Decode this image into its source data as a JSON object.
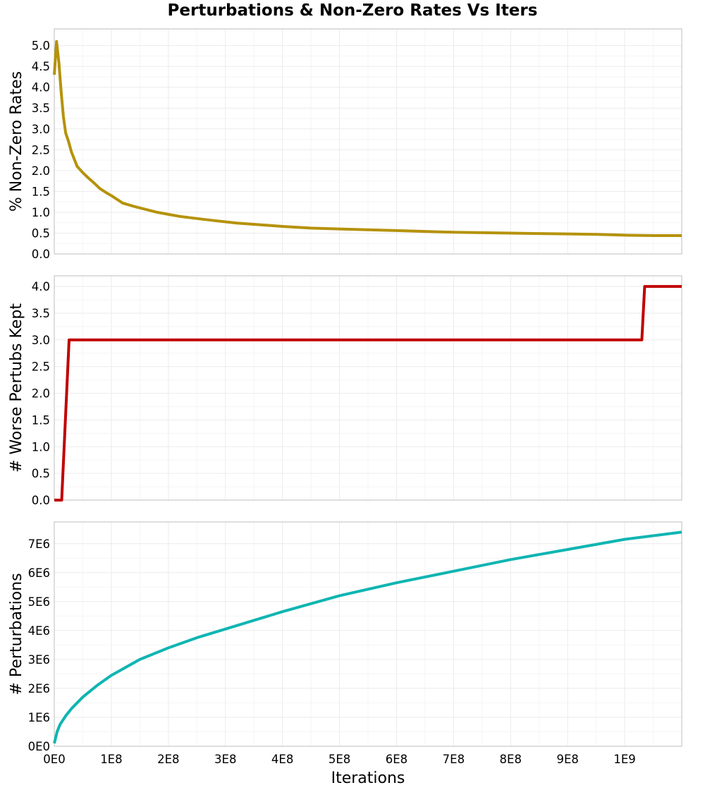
{
  "title": "Perturbations & Non-Zero Rates Vs Iters",
  "xlabel": "Iterations",
  "chart_data": [
    {
      "type": "line",
      "ylabel": "% Non-Zero Rates",
      "xlim": [
        0,
        1100000000
      ],
      "ylim": [
        0,
        5.4
      ],
      "yticks": [
        0,
        0.5,
        1.0,
        1.5,
        2.0,
        2.5,
        3.0,
        3.5,
        4.0,
        4.5,
        5.0
      ],
      "ytick_labels": [
        "0.0",
        "0.5",
        "1.0",
        "1.5",
        "2.0",
        "2.5",
        "3.0",
        "3.5",
        "4.0",
        "4.5",
        "5.0"
      ],
      "grid": true,
      "series": [
        {
          "color": "#b5920b",
          "x": [
            0,
            4000000,
            8000000,
            12000000,
            16000000,
            20000000,
            25000000,
            30000000,
            40000000,
            50000000,
            60000000,
            70000000,
            80000000,
            90000000,
            100000000,
            120000000,
            140000000,
            160000000,
            180000000,
            200000000,
            220000000,
            250000000,
            280000000,
            320000000,
            360000000,
            400000000,
            450000000,
            500000000,
            550000000,
            600000000,
            650000000,
            700000000,
            750000000,
            800000000,
            850000000,
            900000000,
            950000000,
            1000000000,
            1050000000,
            1100000000
          ],
          "y": [
            4.3,
            5.1,
            4.6,
            3.9,
            3.3,
            2.9,
            2.7,
            2.45,
            2.1,
            1.95,
            1.82,
            1.7,
            1.57,
            1.48,
            1.4,
            1.22,
            1.14,
            1.07,
            1.0,
            0.95,
            0.9,
            0.85,
            0.8,
            0.74,
            0.7,
            0.66,
            0.62,
            0.6,
            0.58,
            0.56,
            0.54,
            0.52,
            0.51,
            0.5,
            0.49,
            0.48,
            0.47,
            0.45,
            0.44,
            0.44
          ]
        }
      ]
    },
    {
      "type": "line",
      "ylabel": "# Worse Pertubs Kept",
      "xlim": [
        0,
        1100000000
      ],
      "ylim": [
        0,
        4.2
      ],
      "yticks": [
        0,
        0.5,
        1.0,
        1.5,
        2.0,
        2.5,
        3.0,
        3.5,
        4.0
      ],
      "ytick_labels": [
        "0.0",
        "0.5",
        "1.0",
        "1.5",
        "2.0",
        "2.5",
        "3.0",
        "3.5",
        "4.0"
      ],
      "grid": true,
      "series": [
        {
          "color": "#c00000",
          "x": [
            0,
            13000000,
            26000000,
            1030000000,
            1035000000,
            1100000000
          ],
          "y": [
            0,
            0,
            3,
            3,
            4,
            4
          ]
        }
      ]
    },
    {
      "type": "line",
      "ylabel": "# Perturbations",
      "xlim": [
        0,
        1100000000
      ],
      "ylim": [
        0,
        7750000
      ],
      "yticks": [
        0,
        1000000,
        2000000,
        3000000,
        4000000,
        5000000,
        6000000,
        7000000
      ],
      "ytick_labels": [
        "0E0",
        "1E6",
        "2E6",
        "3E6",
        "4E6",
        "5E6",
        "6E6",
        "7E6"
      ],
      "grid": true,
      "series": [
        {
          "color": "#0fb5b2",
          "x": [
            0,
            5000000,
            10000000,
            20000000,
            30000000,
            50000000,
            75000000,
            100000000,
            150000000,
            200000000,
            250000000,
            300000000,
            400000000,
            500000000,
            600000000,
            700000000,
            800000000,
            900000000,
            1000000000,
            1100000000
          ],
          "y": [
            100000,
            500000,
            750000,
            1050000,
            1300000,
            1700000,
            2100000,
            2450000,
            3000000,
            3400000,
            3750000,
            4050000,
            4650000,
            5200000,
            5650000,
            6050000,
            6450000,
            6800000,
            7150000,
            7400000
          ]
        }
      ]
    }
  ],
  "xticks": [
    0,
    100000000,
    200000000,
    300000000,
    400000000,
    500000000,
    600000000,
    700000000,
    800000000,
    900000000,
    1000000000
  ],
  "xtick_labels": [
    "0E0",
    "1E8",
    "2E8",
    "3E8",
    "4E8",
    "5E8",
    "6E8",
    "7E8",
    "8E8",
    "9E8",
    "1E9"
  ]
}
